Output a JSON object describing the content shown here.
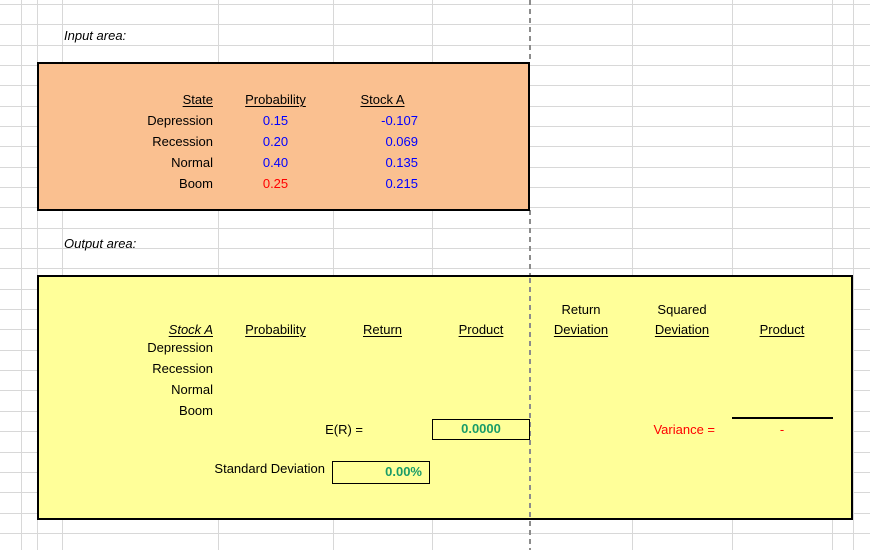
{
  "colors": {
    "value_blue": "#0000FF",
    "value_red": "#FF0000",
    "result_green": "#199C68",
    "input_fill": "#FAC090",
    "output_fill": "#FFFF99",
    "gridline": "#D8D8D8",
    "pagebreak": "#8C8C8C",
    "border_black": "#000000"
  },
  "labels": {
    "input_area": "Input area:",
    "output_area": "Output area:"
  },
  "input_table": {
    "col_state": "State",
    "col_probability": "Probability",
    "col_stock_a": "Stock A",
    "rows": [
      {
        "state": "Depression",
        "probability": "0.15",
        "stock_a": "-0.107"
      },
      {
        "state": "Recession",
        "probability": "0.20",
        "stock_a": "0.069"
      },
      {
        "state": "Normal",
        "probability": "0.40",
        "stock_a": "0.135"
      },
      {
        "state": "Boom",
        "probability": "0.25",
        "stock_a": "0.215"
      }
    ]
  },
  "output_table": {
    "col_stock_a": "Stock A",
    "col_probability": "Probability",
    "col_return": "Return",
    "col_product": "Product",
    "col_return_deviation_line1": "Return",
    "col_return_deviation_line2": "Deviation",
    "col_squared_deviation_line1": "Squared",
    "col_squared_deviation_line2": "Deviation",
    "col_product2": "Product",
    "rows": [
      "Depression",
      "Recession",
      "Normal",
      "Boom"
    ],
    "er_label": "E(R) =",
    "er_value": "0.0000",
    "variance_label": "Variance =",
    "variance_value": "-",
    "sd_label": "Standard Deviation",
    "sd_value": "0.00%"
  }
}
